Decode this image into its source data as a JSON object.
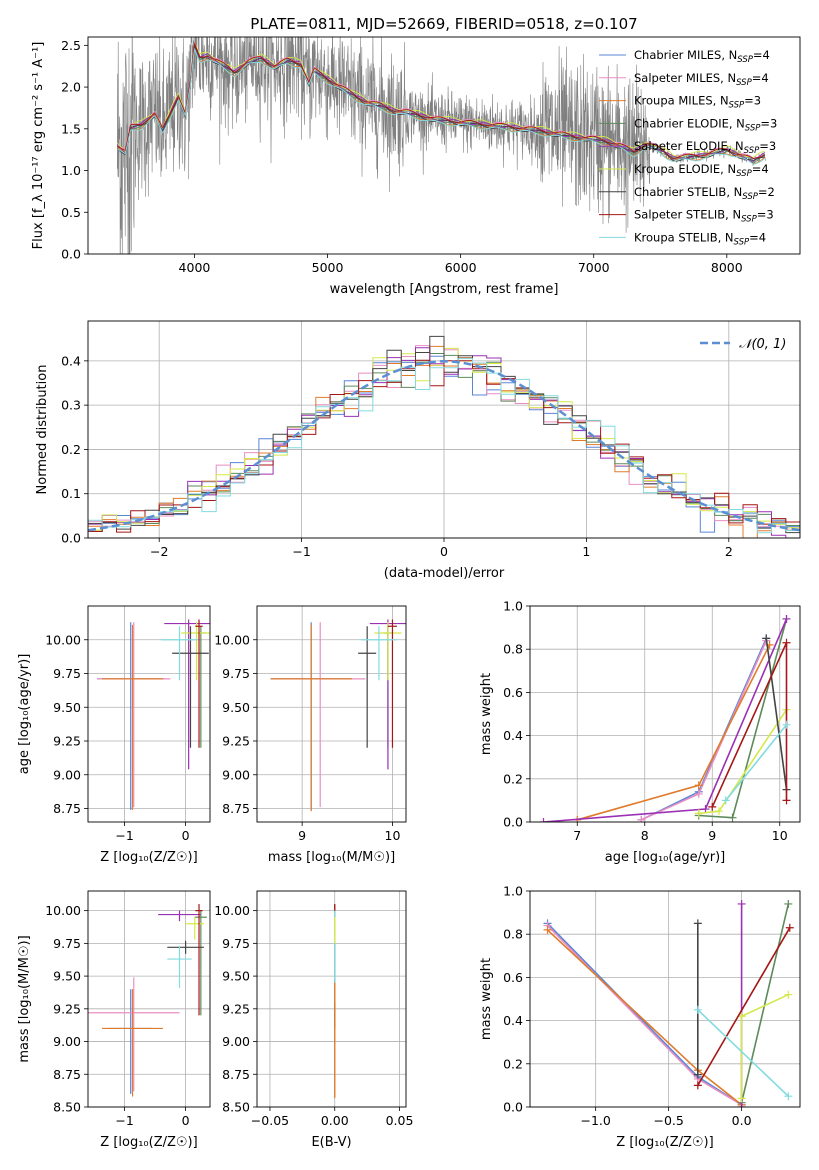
{
  "figure_title": "PLATE=0811, MJD=52669, FIBERID=0518, z=0.107",
  "colors": {
    "Chabrier MILES": "#5a86d6",
    "Salpeter MILES": "#e98ec2",
    "Kroupa MILES": "#e07b2c",
    "Chabrier ELODIE": "#5d8a5a",
    "Salpeter ELODIE": "#9b30b4",
    "Kroupa ELODIE": "#d4e84a",
    "Chabrier STELIB": "#444444",
    "Salpeter STELIB": "#a51616",
    "Kroupa STELIB": "#82dbe0",
    "data": "#808080",
    "gauss": "#5b8fd1"
  },
  "chart_data": [
    {
      "id": "spectrum",
      "type": "line",
      "xlabel": "wavelength [Angstrom, rest frame]",
      "ylabel": "Flux [f_λ 10⁻¹⁷ erg cm⁻² s⁻¹ A⁻¹]",
      "xlim": [
        3200,
        8550
      ],
      "ylim": [
        0,
        2.6
      ],
      "xticks": [
        4000,
        5000,
        6000,
        7000,
        8000
      ],
      "yticks": [
        0.0,
        0.5,
        1.0,
        1.5,
        2.0,
        2.5
      ],
      "legend_position": "top-right",
      "legend": [
        {
          "label": "Chabrier MILES, N",
          "sub": "SSP",
          "eq": "=4",
          "model": "Chabrier MILES"
        },
        {
          "label": "Salpeter MILES, N",
          "sub": "SSP",
          "eq": "=4",
          "model": "Salpeter MILES"
        },
        {
          "label": "Kroupa MILES, N",
          "sub": "SSP",
          "eq": "=3",
          "model": "Kroupa MILES"
        },
        {
          "label": "Chabrier ELODIE, N",
          "sub": "SSP",
          "eq": "=3",
          "model": "Chabrier ELODIE"
        },
        {
          "label": "Salpeter ELODIE, N",
          "sub": "SSP",
          "eq": "=3",
          "model": "Salpeter ELODIE"
        },
        {
          "label": "Kroupa ELODIE, N",
          "sub": "SSP",
          "eq": "=4",
          "model": "Kroupa ELODIE"
        },
        {
          "label": "Chabrier STELIB, N",
          "sub": "SSP",
          "eq": "=2",
          "model": "Chabrier STELIB"
        },
        {
          "label": "Salpeter STELIB, N",
          "sub": "SSP",
          "eq": "=3",
          "model": "Salpeter STELIB"
        },
        {
          "label": "Kroupa STELIB, N",
          "sub": "SSP",
          "eq": "=4",
          "model": "Kroupa STELIB"
        }
      ],
      "model_continuum": {
        "x": [
          3420,
          3480,
          3520,
          3600,
          3700,
          3760,
          3800,
          3880,
          3930,
          3970,
          4000,
          4040,
          4100,
          4200,
          4300,
          4400,
          4500,
          4600,
          4700,
          4800,
          4860,
          4900,
          5000,
          5100,
          5200,
          5300,
          5400,
          5500,
          5600,
          5800,
          6000,
          6200,
          6400,
          6600,
          6800,
          7000,
          7100,
          7200,
          7300,
          7400,
          7500,
          7600,
          7800,
          8000,
          8200,
          8290
        ],
        "y": [
          1.3,
          1.22,
          1.52,
          1.55,
          1.68,
          1.48,
          1.62,
          1.9,
          1.68,
          2.05,
          2.5,
          2.35,
          2.38,
          2.28,
          2.18,
          2.3,
          2.35,
          2.25,
          2.32,
          2.28,
          2.05,
          2.2,
          2.1,
          2.0,
          1.9,
          1.82,
          1.78,
          1.72,
          1.7,
          1.62,
          1.58,
          1.55,
          1.52,
          1.48,
          1.42,
          1.38,
          1.35,
          1.3,
          1.22,
          1.32,
          1.25,
          1.15,
          1.18,
          1.25,
          1.12,
          1.2
        ],
        "offsets": [
          0.0,
          0.02,
          -0.03,
          -0.01,
          0.0,
          0.03,
          -0.02,
          0.01,
          -0.04
        ]
      }
    },
    {
      "id": "residuals",
      "type": "line",
      "xlabel": "(data-model)/error",
      "ylabel": "Normed distribution",
      "xlim": [
        -2.5,
        2.5
      ],
      "ylim": [
        0,
        0.49
      ],
      "xticks": [
        -2,
        -1,
        0,
        1,
        2
      ],
      "yticks": [
        0.0,
        0.1,
        0.2,
        0.3,
        0.4
      ],
      "grid": true,
      "legend_position": "top-right",
      "legend": [
        {
          "label": "𝒩(0, 1)"
        }
      ],
      "bin_width": 0.1
    },
    {
      "id": "age_vs_Z",
      "type": "scatter",
      "xlabel": "Z [log₁₀(Z/Z☉)]",
      "ylabel": "age  [log₁₀(age/yr)]",
      "xlim": [
        -1.6,
        0.4
      ],
      "ylim": [
        8.65,
        10.25
      ],
      "xticks": [
        -1,
        0
      ],
      "yticks": [
        8.75,
        9.0,
        9.25,
        9.5,
        9.75,
        10.0
      ],
      "grid": true,
      "points": [
        {
          "model": "Chabrier MILES",
          "x": -0.9,
          "xerr": 0.55,
          "y": 9.71,
          "yerr": [
            0.97,
            0.42
          ]
        },
        {
          "model": "Salpeter MILES",
          "x": -0.85,
          "xerr": 0.6,
          "y": 9.71,
          "yerr": [
            0.95,
            0.42
          ]
        },
        {
          "model": "Kroupa MILES",
          "x": -0.87,
          "xerr": 0.5,
          "y": 9.71,
          "yerr": [
            0.97,
            0.4
          ]
        },
        {
          "model": "Chabrier ELODIE",
          "x": 0.25,
          "xerr": 0.08,
          "y": 10.05,
          "yerr": [
            0.85,
            0.05
          ]
        },
        {
          "model": "Salpeter ELODIE",
          "x": 0.05,
          "xerr": 0.4,
          "y": 10.12,
          "yerr": [
            1.08,
            0.03
          ]
        },
        {
          "model": "Kroupa ELODIE",
          "x": 0.18,
          "xerr": 0.25,
          "y": 10.05,
          "yerr": [
            0.35,
            0.08
          ]
        },
        {
          "model": "Chabrier STELIB",
          "x": 0.08,
          "xerr": 0.3,
          "y": 9.9,
          "yerr": [
            0.7,
            0.2
          ]
        },
        {
          "model": "Salpeter STELIB",
          "x": 0.22,
          "xerr": 0.06,
          "y": 10.1,
          "yerr": [
            0.9,
            0.05
          ]
        },
        {
          "model": "Kroupa STELIB",
          "x": -0.1,
          "xerr": 0.3,
          "y": 10.0,
          "yerr": [
            0.3,
            0.1
          ]
        }
      ]
    },
    {
      "id": "age_vs_mass",
      "type": "scatter",
      "xlabel": "mass [log₁₀(M/M☉)]",
      "ylabel": "",
      "xlim": [
        8.5,
        10.15
      ],
      "ylim": [
        8.65,
        10.25
      ],
      "xticks": [
        9,
        10
      ],
      "yticks": [
        8.75,
        9.0,
        9.25,
        9.5,
        9.75,
        10.0
      ],
      "grid": true,
      "points": [
        {
          "model": "Chabrier MILES",
          "x": 9.1,
          "xerr": 0.45,
          "y": 9.71,
          "yerr": [
            0.97,
            0.42
          ]
        },
        {
          "model": "Salpeter MILES",
          "x": 9.2,
          "xerr": 0.5,
          "y": 9.71,
          "yerr": [
            0.95,
            0.42
          ]
        },
        {
          "model": "Kroupa MILES",
          "x": 9.1,
          "xerr": 0.45,
          "y": 9.71,
          "yerr": [
            0.98,
            0.4
          ]
        },
        {
          "model": "Chabrier ELODIE",
          "x": 9.95,
          "xerr": 0.05,
          "y": 10.05,
          "yerr": [
            0.85,
            0.05
          ]
        },
        {
          "model": "Salpeter ELODIE",
          "x": 9.95,
          "xerr": 0.2,
          "y": 10.12,
          "yerr": [
            1.08,
            0.03
          ]
        },
        {
          "model": "Kroupa ELODIE",
          "x": 9.95,
          "xerr": 0.15,
          "y": 10.05,
          "yerr": [
            0.35,
            0.08
          ]
        },
        {
          "model": "Chabrier STELIB",
          "x": 9.72,
          "xerr": 0.1,
          "y": 9.9,
          "yerr": [
            0.7,
            0.2
          ]
        },
        {
          "model": "Salpeter STELIB",
          "x": 10.0,
          "xerr": 0.05,
          "y": 10.1,
          "yerr": [
            0.9,
            0.05
          ]
        },
        {
          "model": "Kroupa STELIB",
          "x": 9.85,
          "xerr": 0.2,
          "y": 10.0,
          "yerr": [
            0.3,
            0.1
          ]
        }
      ]
    },
    {
      "id": "mw_vs_age",
      "type": "line",
      "xlabel": "age  [log₁₀(age/yr)]",
      "ylabel": "mass weight",
      "xlim": [
        6.3,
        10.3
      ],
      "ylim": [
        0,
        1.0
      ],
      "xticks": [
        7,
        8,
        9,
        10
      ],
      "yticks": [
        0.0,
        0.2,
        0.4,
        0.6,
        0.8,
        1.0
      ],
      "grid": true,
      "series": [
        {
          "model": "Chabrier MILES",
          "x": [
            7.95,
            8.8,
            9.8
          ],
          "y": [
            0.01,
            0.14,
            0.85
          ]
        },
        {
          "model": "Salpeter MILES",
          "x": [
            7.95,
            8.8,
            9.8
          ],
          "y": [
            0.01,
            0.13,
            0.84
          ]
        },
        {
          "model": "Kroupa MILES",
          "x": [
            7.0,
            8.8,
            9.85
          ],
          "y": [
            0.01,
            0.17,
            0.82
          ]
        },
        {
          "model": "Chabrier ELODIE",
          "x": [
            8.8,
            9.3,
            10.1
          ],
          "y": [
            0.03,
            0.02,
            0.94
          ]
        },
        {
          "model": "Salpeter ELODIE",
          "x": [
            6.5,
            8.9,
            10.1
          ],
          "y": [
            0.0,
            0.06,
            0.94
          ]
        },
        {
          "model": "Kroupa ELODIE",
          "x": [
            8.8,
            9.1,
            10.1
          ],
          "y": [
            0.04,
            0.05,
            0.52
          ]
        },
        {
          "model": "Chabrier STELIB",
          "x": [
            9.8,
            10.1
          ],
          "y": [
            0.85,
            0.15
          ]
        },
        {
          "model": "Salpeter STELIB",
          "x": [
            9.0,
            10.1,
            10.1
          ],
          "y": [
            0.07,
            0.83,
            0.1
          ]
        },
        {
          "model": "Kroupa STELIB",
          "x": [
            9.2,
            10.1
          ],
          "y": [
            0.1,
            0.45
          ]
        }
      ]
    },
    {
      "id": "mass_vs_Z",
      "type": "scatter",
      "xlabel": "Z [log₁₀(Z/Z☉)]",
      "ylabel": "mass [log₁₀(M/M☉)]",
      "xlim": [
        -1.6,
        0.4
      ],
      "ylim": [
        8.5,
        10.15
      ],
      "xticks": [
        -1,
        0
      ],
      "yticks": [
        8.5,
        8.75,
        9.0,
        9.25,
        9.5,
        9.75,
        10.0
      ],
      "grid": true,
      "points": [
        {
          "model": "Chabrier MILES",
          "x": -0.9,
          "xerr": 0.35,
          "y": 9.1,
          "yerr": [
            0.5,
            0.3
          ]
        },
        {
          "model": "Salpeter MILES",
          "x": -0.85,
          "xerr": 0.75,
          "y": 9.22,
          "yerr": [
            0.6,
            0.27
          ]
        },
        {
          "model": "Kroupa MILES",
          "x": -0.87,
          "xerr": 0.5,
          "y": 9.1,
          "yerr": [
            0.52,
            0.3
          ]
        },
        {
          "model": "Chabrier ELODIE",
          "x": 0.25,
          "xerr": 0.1,
          "y": 9.95,
          "yerr": [
            0.75,
            0.05
          ]
        },
        {
          "model": "Salpeter ELODIE",
          "x": -0.1,
          "xerr": 0.35,
          "y": 9.97,
          "yerr": [
            0.05,
            0.03
          ]
        },
        {
          "model": "Kroupa ELODIE",
          "x": 0.15,
          "xerr": 0.15,
          "y": 9.9,
          "yerr": [
            0.12,
            0.05
          ]
        },
        {
          "model": "Chabrier STELIB",
          "x": 0.0,
          "xerr": 0.3,
          "y": 9.72,
          "yerr": [
            0.05,
            0.05
          ]
        },
        {
          "model": "Salpeter STELIB",
          "x": 0.22,
          "xerr": 0.06,
          "y": 10.0,
          "yerr": [
            0.8,
            0.05
          ]
        },
        {
          "model": "Kroupa STELIB",
          "x": -0.1,
          "xerr": 0.2,
          "y": 9.63,
          "yerr": [
            0.22,
            0.1
          ]
        }
      ]
    },
    {
      "id": "mass_vs_EBV",
      "type": "scatter",
      "xlabel": "E(B-V)",
      "ylabel": "",
      "xlim": [
        -0.06,
        0.055
      ],
      "ylim": [
        8.5,
        10.15
      ],
      "xticks": [
        -0.05,
        0.0,
        0.05
      ],
      "yticks": [
        8.5,
        8.75,
        9.0,
        9.25,
        9.5,
        9.75,
        10.0
      ],
      "grid": true,
      "segments": [
        {
          "model": "Salpeter STELIB",
          "x": 0.0,
          "y0": 9.6,
          "y1": 10.05
        },
        {
          "model": "Chabrier STELIB",
          "x": 0.0,
          "y0": 9.1,
          "y1": 9.8
        },
        {
          "model": "Kroupa STELIB",
          "x": 0.0,
          "y0": 9.3,
          "y1": 10.0
        },
        {
          "model": "Kroupa ELODIE",
          "x": 0.0,
          "y0": 9.75,
          "y1": 9.95
        },
        {
          "model": "Kroupa MILES",
          "x": 0.0,
          "y0": 8.57,
          "y1": 9.45
        }
      ]
    },
    {
      "id": "mw_vs_Z",
      "type": "line",
      "xlabel": "Z [log₁₀(Z/Z☉)]",
      "ylabel": "mass weight",
      "xlim": [
        -1.45,
        0.4
      ],
      "ylim": [
        0,
        1.0
      ],
      "xticks": [
        -1.0,
        -0.5,
        0.0
      ],
      "yticks": [
        0.0,
        0.2,
        0.4,
        0.6,
        0.8,
        1.0
      ],
      "grid": true,
      "series": [
        {
          "model": "Chabrier MILES",
          "x": [
            -1.33,
            -0.3,
            0.0
          ],
          "y": [
            0.85,
            0.14,
            0.01
          ]
        },
        {
          "model": "Salpeter MILES",
          "x": [
            -1.33,
            -0.3,
            0.0
          ],
          "y": [
            0.84,
            0.13,
            0.01
          ]
        },
        {
          "model": "Kroupa MILES",
          "x": [
            -1.33,
            -0.3,
            0.0
          ],
          "y": [
            0.82,
            0.17,
            0.01
          ]
        },
        {
          "model": "Chabrier ELODIE",
          "x": [
            0.0,
            0.32
          ],
          "y": [
            0.02,
            0.94
          ]
        },
        {
          "model": "Salpeter ELODIE",
          "x": [
            0.0,
            0.0
          ],
          "y": [
            0.0,
            0.94
          ]
        },
        {
          "model": "Kroupa ELODIE",
          "x": [
            0.0,
            0.0,
            0.32
          ],
          "y": [
            0.04,
            0.42,
            0.52
          ]
        },
        {
          "model": "Chabrier STELIB",
          "x": [
            -0.3,
            -0.3
          ],
          "y": [
            0.15,
            0.85
          ]
        },
        {
          "model": "Salpeter STELIB",
          "x": [
            -0.3,
            0.33
          ],
          "y": [
            0.1,
            0.83
          ]
        },
        {
          "model": "Kroupa STELIB",
          "x": [
            -0.3,
            0.32
          ],
          "y": [
            0.45,
            0.05
          ]
        }
      ]
    }
  ]
}
